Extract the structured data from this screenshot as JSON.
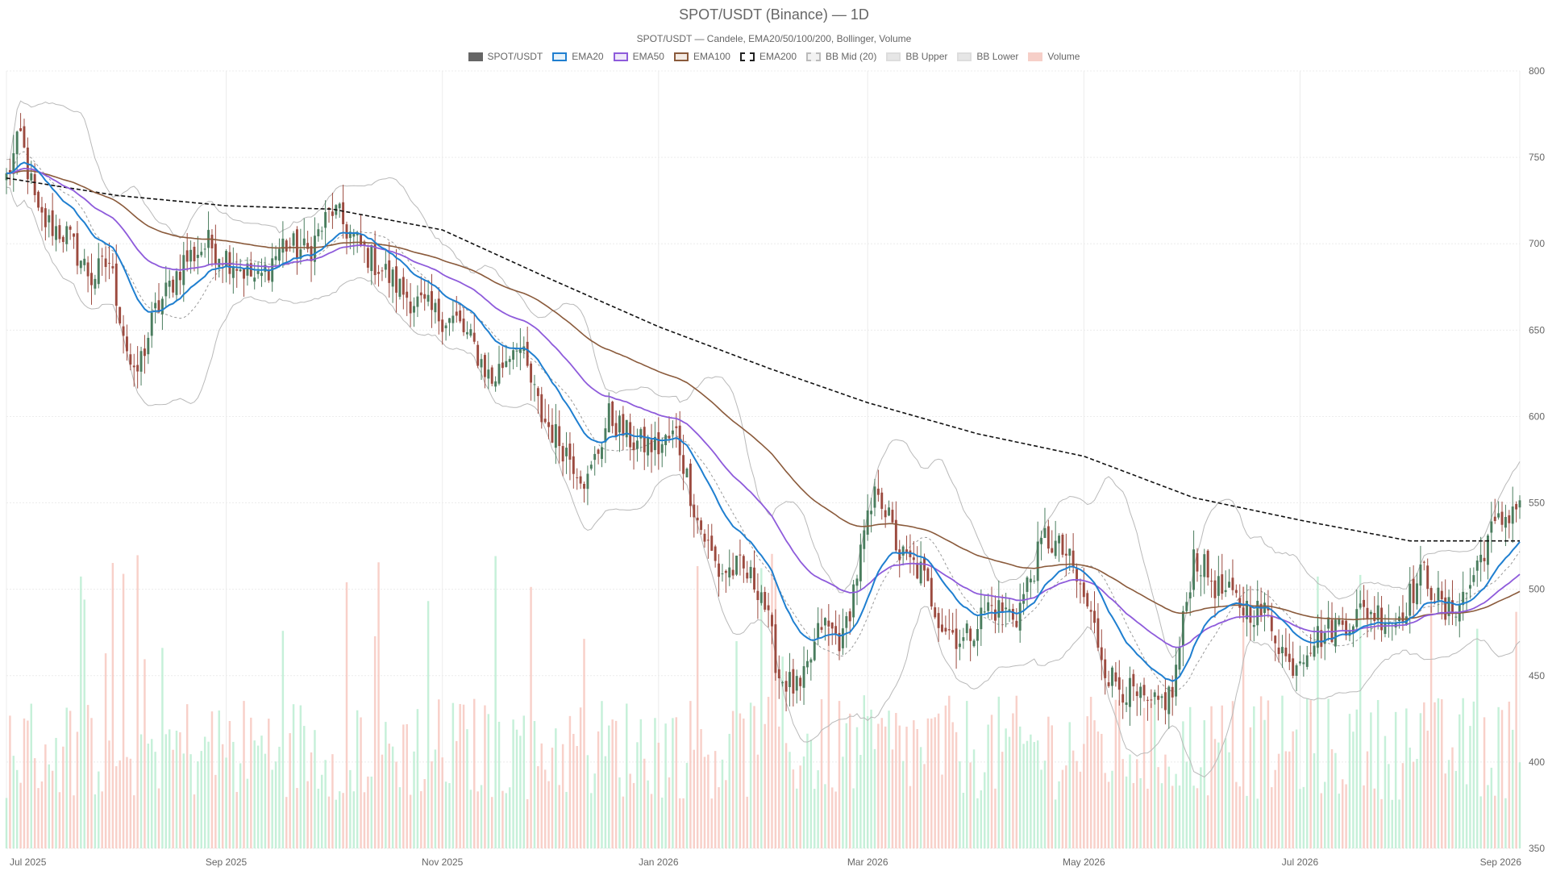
{
  "chart_data": {
    "type": "candlestick",
    "title": "SPOT/USDT (Binance) — 1D",
    "subtitle": "SPOT/USDT — Candele, EMA20/50/100/200, Bollinger, Volume",
    "legend_placement": "top-center",
    "grid": true,
    "x_range": [
      "2025-07-01",
      "2026-09-01"
    ],
    "x_tick_labels": [
      {
        "label": "Jul 2025",
        "date": "2025-07-01"
      },
      {
        "label": "Sep 2025",
        "date": "2025-09-01"
      },
      {
        "label": "Nov 2025",
        "date": "2025-11-01"
      },
      {
        "label": "Jan 2026",
        "date": "2026-01-01"
      },
      {
        "label": "Mar 2026",
        "date": "2026-03-01"
      },
      {
        "label": "May 2026",
        "date": "2026-05-01"
      },
      {
        "label": "Jul 2026",
        "date": "2026-07-01"
      },
      {
        "label": "Sep 2026",
        "date": "2026-09-01"
      }
    ],
    "y_ticks": [
      350,
      400,
      450,
      500,
      550,
      600,
      650,
      700,
      750,
      800
    ],
    "ylim": [
      350,
      800
    ],
    "legend": [
      {
        "name": "SPOT/USDT",
        "fill": "#666666",
        "border": "#666666"
      },
      {
        "name": "EMA20",
        "fill": "#e6f2fa",
        "border": "#1f7fd0"
      },
      {
        "name": "EMA50",
        "fill": "#efe8fa",
        "border": "#8e5bdb"
      },
      {
        "name": "EMA100",
        "fill": "#f4ebe4",
        "border": "#8a5a3b"
      },
      {
        "name": "EMA200",
        "fill": "#ffffff",
        "border": "#222222",
        "dashed": true
      },
      {
        "name": "BB Mid (20)",
        "fill": "#f2f2f2",
        "border": "#bbbbbb",
        "dashed": true
      },
      {
        "name": "BB Upper",
        "fill": "#e6e6e6",
        "border": "#dddddd"
      },
      {
        "name": "BB Lower",
        "fill": "#e6e6e6",
        "border": "#dddddd"
      },
      {
        "name": "Volume",
        "fill": "#f6cfc8",
        "border": "#f6cfc8"
      }
    ],
    "colors": {
      "up": "#4a7d5e",
      "down": "#9c4a3f",
      "ema20": "#1f7fd0",
      "ema50": "#8e5bdb",
      "ema100": "#8a5a3b",
      "ema200": "#111111",
      "bb_band": "#b9b9b9",
      "bb_mid": "#999999",
      "volume_up": "#b8ecd0",
      "volume_down": "#f6c4bb"
    },
    "price_anchors": [
      [
        "2025-07-01",
        738
      ],
      [
        "2025-07-05",
        762
      ],
      [
        "2025-07-10",
        715
      ],
      [
        "2025-07-18",
        705
      ],
      [
        "2025-07-25",
        680
      ],
      [
        "2025-07-30",
        690
      ],
      [
        "2025-08-06",
        620
      ],
      [
        "2025-08-12",
        660
      ],
      [
        "2025-08-20",
        690
      ],
      [
        "2025-08-27",
        700
      ],
      [
        "2025-09-03",
        690
      ],
      [
        "2025-09-10",
        678
      ],
      [
        "2025-09-17",
        700
      ],
      [
        "2025-09-24",
        695
      ],
      [
        "2025-10-01",
        720
      ],
      [
        "2025-10-08",
        700
      ],
      [
        "2025-10-15",
        685
      ],
      [
        "2025-10-22",
        670
      ],
      [
        "2025-10-29",
        660
      ],
      [
        "2025-11-05",
        655
      ],
      [
        "2025-11-10",
        640
      ],
      [
        "2025-11-15",
        620
      ],
      [
        "2025-11-22",
        645
      ],
      [
        "2025-11-29",
        600
      ],
      [
        "2025-12-06",
        580
      ],
      [
        "2025-12-12",
        562
      ],
      [
        "2025-12-18",
        600
      ],
      [
        "2025-12-25",
        585
      ],
      [
        "2026-01-01",
        582
      ],
      [
        "2026-01-06",
        590
      ],
      [
        "2026-01-12",
        540
      ],
      [
        "2026-01-18",
        510
      ],
      [
        "2026-01-24",
        512
      ],
      [
        "2026-01-30",
        500
      ],
      [
        "2026-02-04",
        450
      ],
      [
        "2026-02-10",
        440
      ],
      [
        "2026-02-16",
        480
      ],
      [
        "2026-02-22",
        470
      ],
      [
        "2026-02-28",
        530
      ],
      [
        "2026-03-04",
        560
      ],
      [
        "2026-03-10",
        520
      ],
      [
        "2026-03-16",
        510
      ],
      [
        "2026-03-22",
        480
      ],
      [
        "2026-03-28",
        470
      ],
      [
        "2026-04-04",
        490
      ],
      [
        "2026-04-12",
        485
      ],
      [
        "2026-04-20",
        530
      ],
      [
        "2026-04-26",
        520
      ],
      [
        "2026-05-02",
        490
      ],
      [
        "2026-05-08",
        450
      ],
      [
        "2026-05-14",
        440
      ],
      [
        "2026-05-20",
        430
      ],
      [
        "2026-05-26",
        440
      ],
      [
        "2026-06-01",
        520
      ],
      [
        "2026-06-08",
        500
      ],
      [
        "2026-06-15",
        490
      ],
      [
        "2026-06-22",
        485
      ],
      [
        "2026-06-28",
        455
      ],
      [
        "2026-07-04",
        470
      ],
      [
        "2026-07-12",
        480
      ],
      [
        "2026-07-20",
        488
      ],
      [
        "2026-07-28",
        482
      ],
      [
        "2026-08-05",
        510
      ],
      [
        "2026-08-11",
        485
      ],
      [
        "2026-08-17",
        498
      ],
      [
        "2026-08-23",
        530
      ],
      [
        "2026-09-01",
        552
      ]
    ],
    "ema200_anchors": [
      [
        "2025-07-01",
        738
      ],
      [
        "2025-08-01",
        728
      ],
      [
        "2025-09-01",
        722
      ],
      [
        "2025-10-01",
        720
      ],
      [
        "2025-11-01",
        708
      ],
      [
        "2025-12-01",
        680
      ],
      [
        "2026-01-01",
        652
      ],
      [
        "2026-02-01",
        628
      ],
      [
        "2026-03-01",
        608
      ],
      [
        "2026-04-01",
        590
      ],
      [
        "2026-05-01",
        577
      ],
      [
        "2026-06-01",
        553
      ],
      [
        "2026-07-01",
        540
      ],
      [
        "2026-08-01",
        528
      ],
      [
        "2026-09-01",
        528
      ]
    ],
    "volume_note": "volume bars along bottom; relative heights"
  }
}
